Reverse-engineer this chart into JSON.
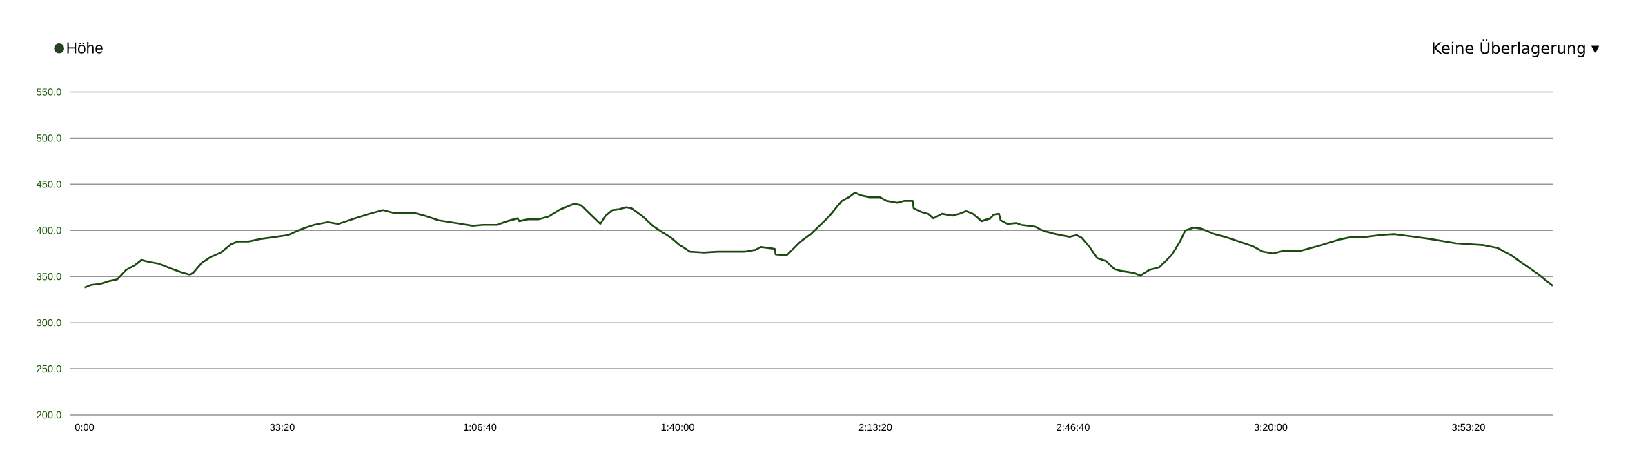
{
  "chart_data": {
    "type": "line",
    "x": [
      0,
      70,
      157,
      244,
      332,
      419,
      506,
      576,
      646,
      750,
      890,
      995,
      1065,
      1099,
      1187,
      1274,
      1379,
      1483,
      1553,
      1658,
      1798,
      1937,
      2059,
      2182,
      2321,
      2461,
      2565,
      2705,
      2880,
      3019,
      3124,
      3333,
      3438,
      3578,
      3752,
      3927,
      4031,
      4171,
      4276,
      4380,
      4398,
      4485,
      4590,
      4695,
      4799,
      4887,
      4956,
      5026,
      5113,
      5218,
      5271,
      5340,
      5410,
      5480,
      5532,
      5637,
      5759,
      5846,
      5934,
      6021,
      6126,
      6265,
      6405,
      6544,
      6684,
      6789,
      6841,
      6981,
      6991,
      7103,
      7243,
      7347,
      7522,
      7661,
      7731,
      7794,
      7853,
      7941,
      8045,
      8115,
      8220,
      8290,
      8377,
      8387,
      8464,
      8534,
      8586,
      8674,
      8778,
      8848,
      8918,
      8988,
      9075,
      9162,
      9197,
      9250,
      9267,
      9337,
      9424,
      9476,
      9616,
      9669,
      9721,
      9826,
      9965,
      10035,
      10087,
      10174,
      10244,
      10331,
      10419,
      10489,
      10611,
      10681,
      10768,
      10873,
      10995,
      11082,
      11135,
      11222,
      11292,
      11431,
      11536,
      11676,
      11815,
      11920,
      12024,
      12129,
      12304,
      12478,
      12688,
      12827,
      12967,
      13106,
      13246,
      13386,
      13595,
      13874,
      14154,
      14293,
      14433,
      14538,
      14607,
      14712,
      14852
    ],
    "series": [
      {
        "name": "Höhe",
        "color": "#1c4a12",
        "values": [
          338,
          341,
          342,
          345,
          347,
          357,
          362,
          368,
          366,
          364,
          358,
          354,
          352,
          354,
          365,
          371,
          376,
          385,
          388,
          388,
          391,
          393,
          395,
          401,
          406,
          409,
          407,
          412,
          418,
          422,
          419,
          419,
          416,
          411,
          408,
          405,
          406,
          406,
          410,
          413,
          410,
          412,
          412,
          415,
          422,
          426,
          429,
          427,
          418,
          407,
          416,
          422,
          423,
          425,
          424,
          416,
          404,
          398,
          392,
          384,
          377,
          376,
          377,
          377,
          377,
          379,
          382,
          380,
          374,
          373,
          388,
          396,
          414,
          432,
          436,
          441,
          438,
          436,
          436,
          432,
          430,
          432,
          432,
          424,
          420,
          418,
          413,
          418,
          416,
          418,
          421,
          418,
          410,
          413,
          417,
          418,
          411,
          407,
          408,
          406,
          404,
          401,
          399,
          396,
          393,
          395,
          392,
          381,
          370,
          367,
          358,
          356,
          354,
          351,
          357,
          360,
          373,
          388,
          400,
          403,
          402,
          396,
          393,
          388,
          383,
          377,
          375,
          378,
          378,
          383,
          390,
          393,
          393,
          395,
          396,
          394,
          391,
          386,
          384,
          381,
          373,
          365,
          360,
          352,
          340
        ]
      }
    ],
    "xlim": [
      -143,
      14852
    ],
    "ylim": [
      200,
      550
    ],
    "xticks": [
      {
        "value": 0,
        "label": "0:00"
      },
      {
        "value": 2000,
        "label": "33:20"
      },
      {
        "value": 4000,
        "label": "1:06:40"
      },
      {
        "value": 6000,
        "label": "1:40:00"
      },
      {
        "value": 8000,
        "label": "2:13:20"
      },
      {
        "value": 10000,
        "label": "2:46:40"
      },
      {
        "value": 12000,
        "label": "3:20:00"
      },
      {
        "value": 14000,
        "label": "3:53:20"
      }
    ],
    "yticks": [
      {
        "value": 200,
        "label": "200.0"
      },
      {
        "value": 250,
        "label": "250.0"
      },
      {
        "value": 300,
        "label": "300.0"
      },
      {
        "value": 350,
        "label": "350.0"
      },
      {
        "value": 400,
        "label": "400.0"
      },
      {
        "value": 450,
        "label": "450.0"
      },
      {
        "value": 500,
        "label": "500.0"
      },
      {
        "value": 550,
        "label": "550.0"
      }
    ],
    "grid": "y",
    "legend": "top left",
    "annotations": [
      "Keine Überlagerung ▾"
    ]
  }
}
